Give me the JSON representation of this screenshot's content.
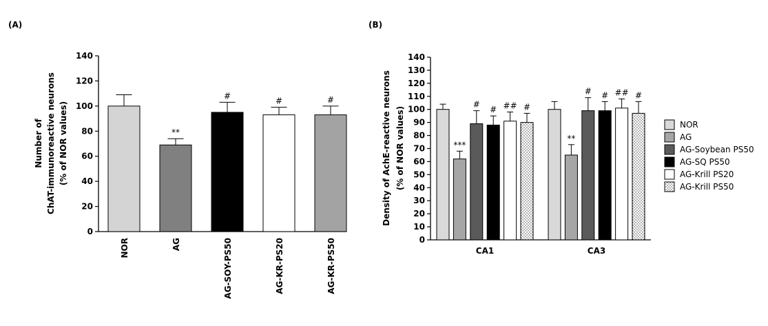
{
  "chart_data": [
    {
      "type": "bar",
      "panel_label": "(A)",
      "y_label": [
        "Number of",
        "ChAT-immunoreactive neurons",
        "(% of  NOR values)"
      ],
      "categories": [
        "NOR",
        "AG",
        "AG-SOY-PS50",
        "AG-KR-PS20",
        "AG-KR-PS50"
      ],
      "values": [
        100,
        69,
        95,
        93,
        93
      ],
      "errors": [
        9,
        5,
        8,
        6,
        7
      ],
      "annotations": [
        null,
        "**",
        "#",
        "#",
        "#"
      ],
      "colors": [
        "#d4d4d4",
        "#808080",
        "#000000",
        "#ffffff",
        "#a3a3a3"
      ],
      "ylim": [
        0,
        140
      ],
      "yticks": [
        0,
        20,
        40,
        60,
        80,
        100,
        120,
        140
      ]
    },
    {
      "type": "grouped_bar",
      "panel_label": "(B)",
      "y_label": [
        "Density of AchE-reactive neurons",
        "(% of NOR values)"
      ],
      "categories": [
        "CA1",
        "CA3"
      ],
      "series": [
        {
          "name": "NOR",
          "color": "#d9d9d9",
          "values": [
            100,
            100
          ],
          "errors": [
            4,
            6
          ],
          "annotations": [
            null,
            null
          ]
        },
        {
          "name": "AG",
          "color": "#a6a6a6",
          "values": [
            62,
            65
          ],
          "errors": [
            6,
            8
          ],
          "annotations": [
            "***",
            "**"
          ]
        },
        {
          "name": "AG-Soybean PS50",
          "color": "#5a5a5a",
          "values": [
            89,
            99
          ],
          "errors": [
            10,
            10
          ],
          "annotations": [
            "#",
            "#"
          ]
        },
        {
          "name": "AG-SQ PS50",
          "color": "#000000",
          "values": [
            88,
            99
          ],
          "errors": [
            7,
            7
          ],
          "annotations": [
            "#",
            "#"
          ]
        },
        {
          "name": "AG-Krill PS20",
          "color": "#ffffff",
          "values": [
            91,
            101
          ],
          "errors": [
            7,
            7
          ],
          "annotations": [
            "##",
            "##"
          ]
        },
        {
          "name": "AG-Krill PS50",
          "color": "#ffffff",
          "pattern": "dots",
          "values": [
            90,
            97
          ],
          "errors": [
            7,
            9
          ],
          "annotations": [
            "#",
            "#"
          ]
        }
      ],
      "ylim": [
        0,
        140
      ],
      "yticks": [
        0,
        10,
        20,
        30,
        40,
        50,
        60,
        70,
        80,
        90,
        100,
        110,
        120,
        130,
        140
      ],
      "legend": "right"
    }
  ]
}
